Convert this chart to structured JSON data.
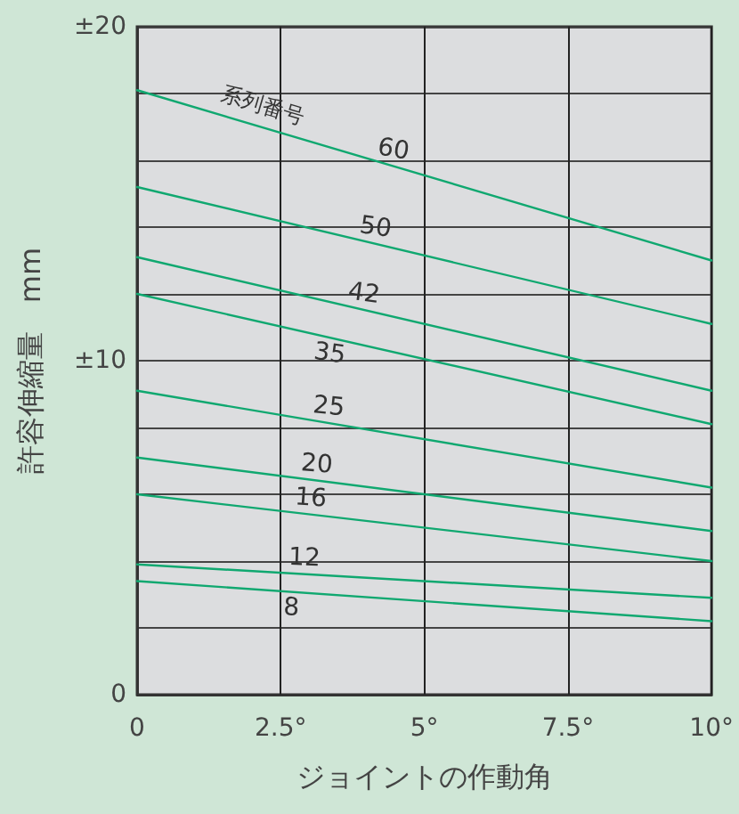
{
  "chart_data": {
    "type": "line",
    "xlabel": "ジョイントの作動角",
    "ylabel": "許容伸縮量　mm",
    "annotations": [
      "系列番号"
    ],
    "xlim": [
      0,
      10
    ],
    "xticks": [
      0,
      {
        "value": 2.5,
        "label": "2.5°"
      },
      {
        "value": 5,
        "label": "5°"
      },
      {
        "value": 7.5,
        "label": "7.5°"
      },
      {
        "value": 10,
        "label": "10°"
      }
    ],
    "ylim": [
      0,
      20
    ],
    "yticks": [
      0,
      {
        "value": 2,
        "label": null
      },
      {
        "value": 4,
        "label": null
      },
      {
        "value": 6,
        "label": null
      },
      {
        "value": 8,
        "label": null
      },
      {
        "value": 10,
        "label": "±10"
      },
      {
        "value": 12,
        "label": null
      },
      {
        "value": 14,
        "label": null
      },
      {
        "value": 16,
        "label": null
      },
      {
        "value": 18,
        "label": null
      },
      {
        "value": 20,
        "label": "±20"
      }
    ],
    "x": [
      0,
      10
    ],
    "grid": true,
    "marker": "none",
    "line_style": "solid",
    "series": [
      {
        "name": "60",
        "color": "#10a870",
        "values": [
          18.1,
          13.0
        ]
      },
      {
        "name": "50",
        "color": "#10a870",
        "values": [
          15.2,
          11.1
        ]
      },
      {
        "name": "42",
        "color": "#10a870",
        "values": [
          13.1,
          9.1
        ]
      },
      {
        "name": "35",
        "color": "#10a870",
        "values": [
          12.0,
          8.1
        ]
      },
      {
        "name": "25",
        "color": "#10a870",
        "values": [
          9.1,
          6.2
        ]
      },
      {
        "name": "20",
        "color": "#10a870",
        "values": [
          7.1,
          4.9
        ]
      },
      {
        "name": "16",
        "color": "#10a870",
        "values": [
          6.0,
          4.0
        ]
      },
      {
        "name": "12",
        "color": "#10a870",
        "values": [
          3.9,
          2.9
        ]
      },
      {
        "name": "8",
        "color": "#10a870",
        "values": [
          3.4,
          2.2
        ]
      }
    ]
  }
}
